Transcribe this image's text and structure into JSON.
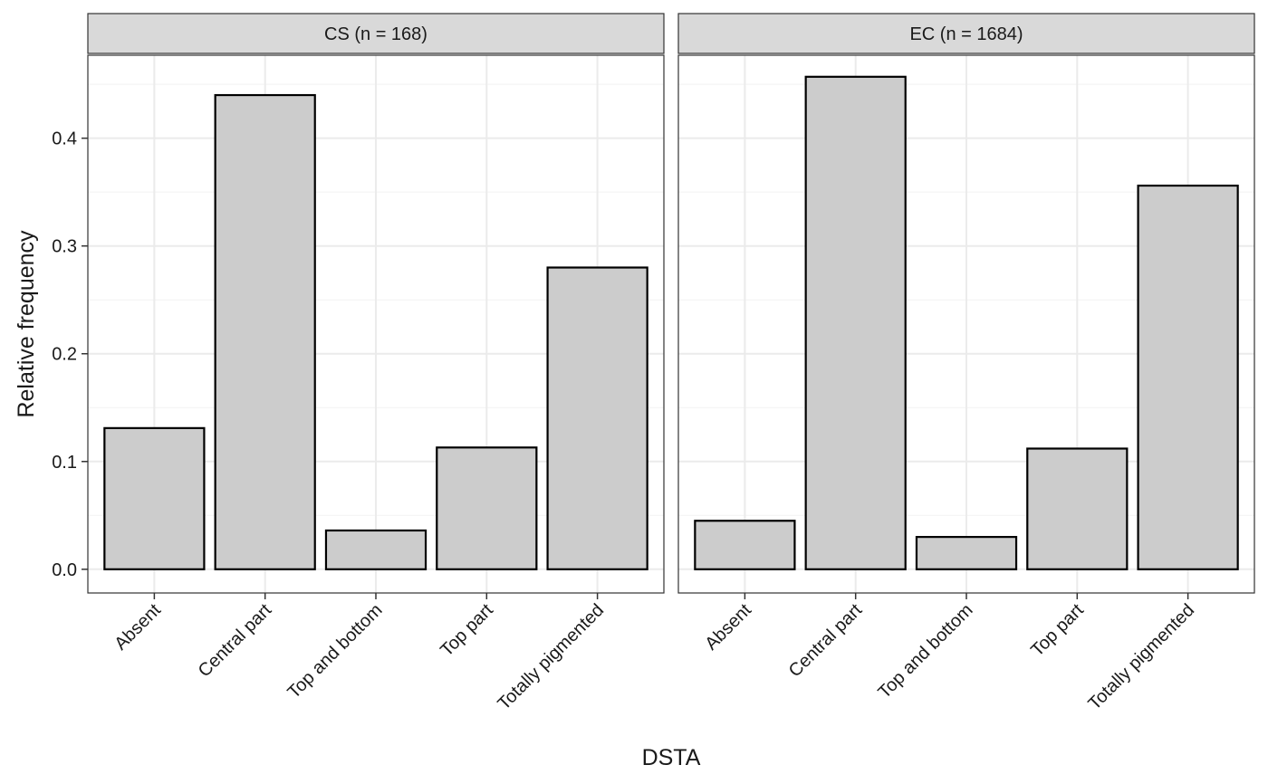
{
  "chart_data": {
    "type": "bar",
    "xlabel": "DSTA",
    "ylabel": "Relative frequency",
    "ylim": [
      -0.022,
      0.477
    ],
    "yticks": [
      0.0,
      0.1,
      0.2,
      0.3,
      0.4
    ],
    "ytick_labels": [
      "0.0",
      "0.1",
      "0.2",
      "0.3",
      "0.4"
    ],
    "categories": [
      "Absent",
      "Central part",
      "Top and bottom",
      "Top part",
      "Totally pigmented"
    ],
    "grid": true,
    "bar_fill": "#cccccc",
    "bar_stroke": "#000000",
    "strip_fill": "#d9d9d9",
    "facets": [
      {
        "label": "CS (n = 168)",
        "values": [
          0.131,
          0.44,
          0.036,
          0.113,
          0.28
        ]
      },
      {
        "label": "EC (n = 1684)",
        "values": [
          0.045,
          0.457,
          0.03,
          0.112,
          0.356
        ]
      }
    ]
  }
}
